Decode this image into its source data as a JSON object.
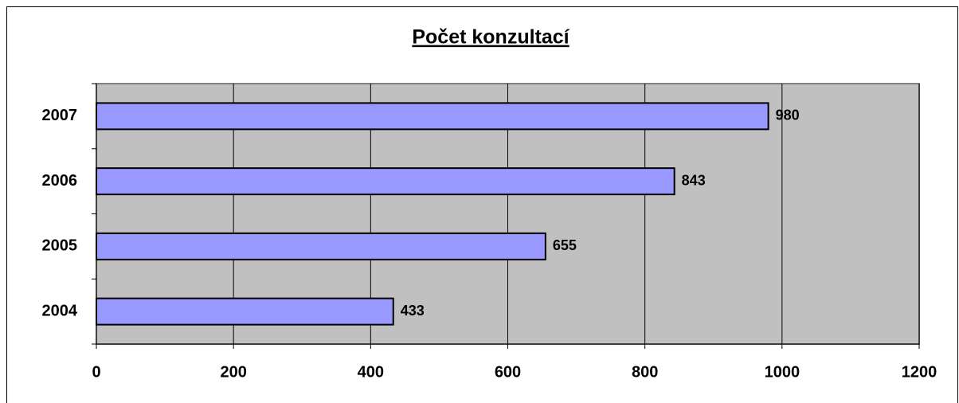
{
  "chart_data": {
    "type": "bar",
    "orientation": "horizontal",
    "title": "Počet konzultací",
    "categories": [
      "2004",
      "2005",
      "2006",
      "2007"
    ],
    "values": [
      433,
      655,
      843,
      980
    ],
    "color": "#9999ff",
    "xlim": [
      0,
      1200
    ],
    "xticks": [
      0,
      200,
      400,
      600,
      800,
      1000,
      1200
    ],
    "grid": true
  }
}
